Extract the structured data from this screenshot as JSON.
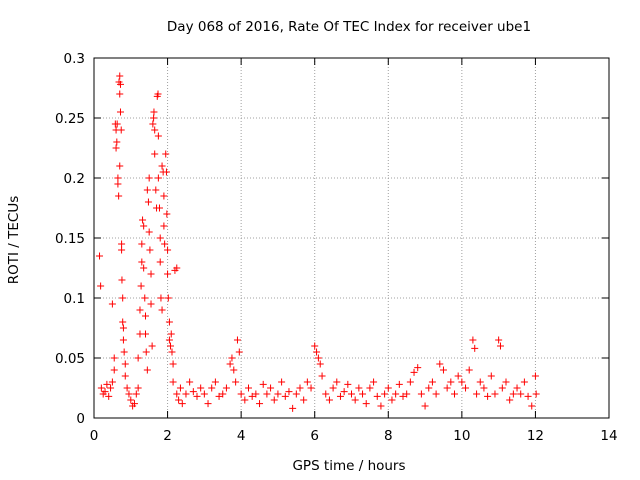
{
  "chart_data": {
    "type": "scatter",
    "title": "Day 068 of 2016, Rate Of TEC Index for receiver ube1",
    "xlabel": "GPS time / hours",
    "ylabel": "ROTI / TECUs",
    "xlim": [
      0,
      14
    ],
    "ylim": [
      0,
      0.3
    ],
    "x_ticks": [
      0,
      2,
      4,
      6,
      8,
      10,
      12,
      14
    ],
    "x_tick_labels": [
      "0",
      "2",
      "4",
      "6",
      "8",
      "10",
      "12",
      "14"
    ],
    "y_ticks": [
      0,
      0.05,
      0.1,
      0.15,
      0.2,
      0.25,
      0.3
    ],
    "y_tick_labels": [
      "0",
      "0.05",
      "0.1",
      "0.15",
      "0.2",
      "0.25",
      "0.3"
    ],
    "grid": true,
    "marker": "+",
    "color": "#ff0000",
    "series": [
      {
        "name": "ROTI",
        "points": [
          [
            0.15,
            0.135
          ],
          [
            0.18,
            0.11
          ],
          [
            0.2,
            0.025
          ],
          [
            0.25,
            0.02
          ],
          [
            0.3,
            0.022
          ],
          [
            0.35,
            0.028
          ],
          [
            0.4,
            0.018
          ],
          [
            0.45,
            0.025
          ],
          [
            0.5,
            0.03
          ],
          [
            0.5,
            0.095
          ],
          [
            0.55,
            0.04
          ],
          [
            0.55,
            0.05
          ],
          [
            0.58,
            0.245
          ],
          [
            0.6,
            0.24
          ],
          [
            0.6,
            0.225
          ],
          [
            0.62,
            0.23
          ],
          [
            0.63,
            0.245
          ],
          [
            0.65,
            0.195
          ],
          [
            0.65,
            0.2
          ],
          [
            0.67,
            0.185
          ],
          [
            0.68,
            0.28
          ],
          [
            0.7,
            0.285
          ],
          [
            0.7,
            0.27
          ],
          [
            0.7,
            0.21
          ],
          [
            0.72,
            0.278
          ],
          [
            0.72,
            0.255
          ],
          [
            0.74,
            0.24
          ],
          [
            0.75,
            0.145
          ],
          [
            0.75,
            0.14
          ],
          [
            0.76,
            0.115
          ],
          [
            0.78,
            0.1
          ],
          [
            0.78,
            0.08
          ],
          [
            0.8,
            0.075
          ],
          [
            0.8,
            0.065
          ],
          [
            0.82,
            0.055
          ],
          [
            0.85,
            0.045
          ],
          [
            0.85,
            0.035
          ],
          [
            0.9,
            0.025
          ],
          [
            0.95,
            0.02
          ],
          [
            1.0,
            0.015
          ],
          [
            1.05,
            0.01
          ],
          [
            1.1,
            0.012
          ],
          [
            1.15,
            0.02
          ],
          [
            1.2,
            0.025
          ],
          [
            1.2,
            0.05
          ],
          [
            1.25,
            0.07
          ],
          [
            1.25,
            0.09
          ],
          [
            1.28,
            0.11
          ],
          [
            1.3,
            0.13
          ],
          [
            1.3,
            0.145
          ],
          [
            1.32,
            0.165
          ],
          [
            1.35,
            0.16
          ],
          [
            1.35,
            0.125
          ],
          [
            1.38,
            0.1
          ],
          [
            1.4,
            0.085
          ],
          [
            1.4,
            0.07
          ],
          [
            1.42,
            0.055
          ],
          [
            1.45,
            0.04
          ],
          [
            1.45,
            0.19
          ],
          [
            1.48,
            0.18
          ],
          [
            1.5,
            0.2
          ],
          [
            1.5,
            0.155
          ],
          [
            1.52,
            0.14
          ],
          [
            1.55,
            0.12
          ],
          [
            1.55,
            0.095
          ],
          [
            1.58,
            0.06
          ],
          [
            1.6,
            0.245
          ],
          [
            1.62,
            0.25
          ],
          [
            1.63,
            0.255
          ],
          [
            1.65,
            0.24
          ],
          [
            1.65,
            0.22
          ],
          [
            1.68,
            0.19
          ],
          [
            1.7,
            0.175
          ],
          [
            1.72,
            0.268
          ],
          [
            1.74,
            0.27
          ],
          [
            1.75,
            0.235
          ],
          [
            1.75,
            0.2
          ],
          [
            1.78,
            0.175
          ],
          [
            1.8,
            0.15
          ],
          [
            1.8,
            0.13
          ],
          [
            1.82,
            0.1
          ],
          [
            1.85,
            0.09
          ],
          [
            1.85,
            0.21
          ],
          [
            1.88,
            0.205
          ],
          [
            1.9,
            0.185
          ],
          [
            1.9,
            0.16
          ],
          [
            1.92,
            0.145
          ],
          [
            1.95,
            0.22
          ],
          [
            1.97,
            0.205
          ],
          [
            1.98,
            0.17
          ],
          [
            2.0,
            0.14
          ],
          [
            2.0,
            0.12
          ],
          [
            2.02,
            0.1
          ],
          [
            2.05,
            0.08
          ],
          [
            2.05,
            0.065
          ],
          [
            2.08,
            0.06
          ],
          [
            2.1,
            0.07
          ],
          [
            2.12,
            0.055
          ],
          [
            2.15,
            0.045
          ],
          [
            2.15,
            0.03
          ],
          [
            2.2,
            0.123
          ],
          [
            2.25,
            0.125
          ],
          [
            2.25,
            0.02
          ],
          [
            2.3,
            0.015
          ],
          [
            2.35,
            0.025
          ],
          [
            2.4,
            0.012
          ],
          [
            2.5,
            0.02
          ],
          [
            2.6,
            0.03
          ],
          [
            2.7,
            0.022
          ],
          [
            2.8,
            0.018
          ],
          [
            2.9,
            0.025
          ],
          [
            3.0,
            0.02
          ],
          [
            3.1,
            0.012
          ],
          [
            3.2,
            0.025
          ],
          [
            3.3,
            0.03
          ],
          [
            3.4,
            0.018
          ],
          [
            3.5,
            0.02
          ],
          [
            3.6,
            0.025
          ],
          [
            3.7,
            0.045
          ],
          [
            3.75,
            0.05
          ],
          [
            3.8,
            0.04
          ],
          [
            3.85,
            0.03
          ],
          [
            3.9,
            0.065
          ],
          [
            3.95,
            0.055
          ],
          [
            4.0,
            0.02
          ],
          [
            4.1,
            0.015
          ],
          [
            4.2,
            0.025
          ],
          [
            4.3,
            0.018
          ],
          [
            4.4,
            0.02
          ],
          [
            4.5,
            0.012
          ],
          [
            4.6,
            0.028
          ],
          [
            4.7,
            0.02
          ],
          [
            4.8,
            0.025
          ],
          [
            4.9,
            0.015
          ],
          [
            5.0,
            0.02
          ],
          [
            5.1,
            0.03
          ],
          [
            5.2,
            0.018
          ],
          [
            5.3,
            0.022
          ],
          [
            5.4,
            0.008
          ],
          [
            5.5,
            0.02
          ],
          [
            5.6,
            0.025
          ],
          [
            5.7,
            0.015
          ],
          [
            5.8,
            0.03
          ],
          [
            5.9,
            0.025
          ],
          [
            6.0,
            0.06
          ],
          [
            6.05,
            0.055
          ],
          [
            6.1,
            0.05
          ],
          [
            6.15,
            0.045
          ],
          [
            6.2,
            0.035
          ],
          [
            6.3,
            0.02
          ],
          [
            6.4,
            0.015
          ],
          [
            6.5,
            0.025
          ],
          [
            6.6,
            0.03
          ],
          [
            6.7,
            0.018
          ],
          [
            6.8,
            0.022
          ],
          [
            6.9,
            0.028
          ],
          [
            7.0,
            0.02
          ],
          [
            7.1,
            0.015
          ],
          [
            7.2,
            0.025
          ],
          [
            7.3,
            0.02
          ],
          [
            7.4,
            0.012
          ],
          [
            7.5,
            0.025
          ],
          [
            7.6,
            0.03
          ],
          [
            7.7,
            0.018
          ],
          [
            7.8,
            0.01
          ],
          [
            7.9,
            0.02
          ],
          [
            8.0,
            0.025
          ],
          [
            8.1,
            0.015
          ],
          [
            8.2,
            0.02
          ],
          [
            8.3,
            0.028
          ],
          [
            8.4,
            0.018
          ],
          [
            8.5,
            0.02
          ],
          [
            8.6,
            0.03
          ],
          [
            8.7,
            0.038
          ],
          [
            8.8,
            0.042
          ],
          [
            8.9,
            0.02
          ],
          [
            9.0,
            0.01
          ],
          [
            9.1,
            0.025
          ],
          [
            9.2,
            0.03
          ],
          [
            9.3,
            0.02
          ],
          [
            9.4,
            0.045
          ],
          [
            9.5,
            0.04
          ],
          [
            9.6,
            0.025
          ],
          [
            9.7,
            0.03
          ],
          [
            9.8,
            0.02
          ],
          [
            9.9,
            0.035
          ],
          [
            10.0,
            0.03
          ],
          [
            10.1,
            0.025
          ],
          [
            10.2,
            0.04
          ],
          [
            10.3,
            0.065
          ],
          [
            10.35,
            0.058
          ],
          [
            10.4,
            0.02
          ],
          [
            10.5,
            0.03
          ],
          [
            10.6,
            0.025
          ],
          [
            10.7,
            0.018
          ],
          [
            10.8,
            0.035
          ],
          [
            10.9,
            0.02
          ],
          [
            11.0,
            0.065
          ],
          [
            11.05,
            0.06
          ],
          [
            11.1,
            0.025
          ],
          [
            11.2,
            0.03
          ],
          [
            11.3,
            0.015
          ],
          [
            11.4,
            0.02
          ],
          [
            11.5,
            0.025
          ],
          [
            11.6,
            0.02
          ],
          [
            11.7,
            0.03
          ],
          [
            11.8,
            0.018
          ],
          [
            11.9,
            0.01
          ],
          [
            12.0,
            0.035
          ],
          [
            12.02,
            0.02
          ]
        ]
      }
    ]
  }
}
